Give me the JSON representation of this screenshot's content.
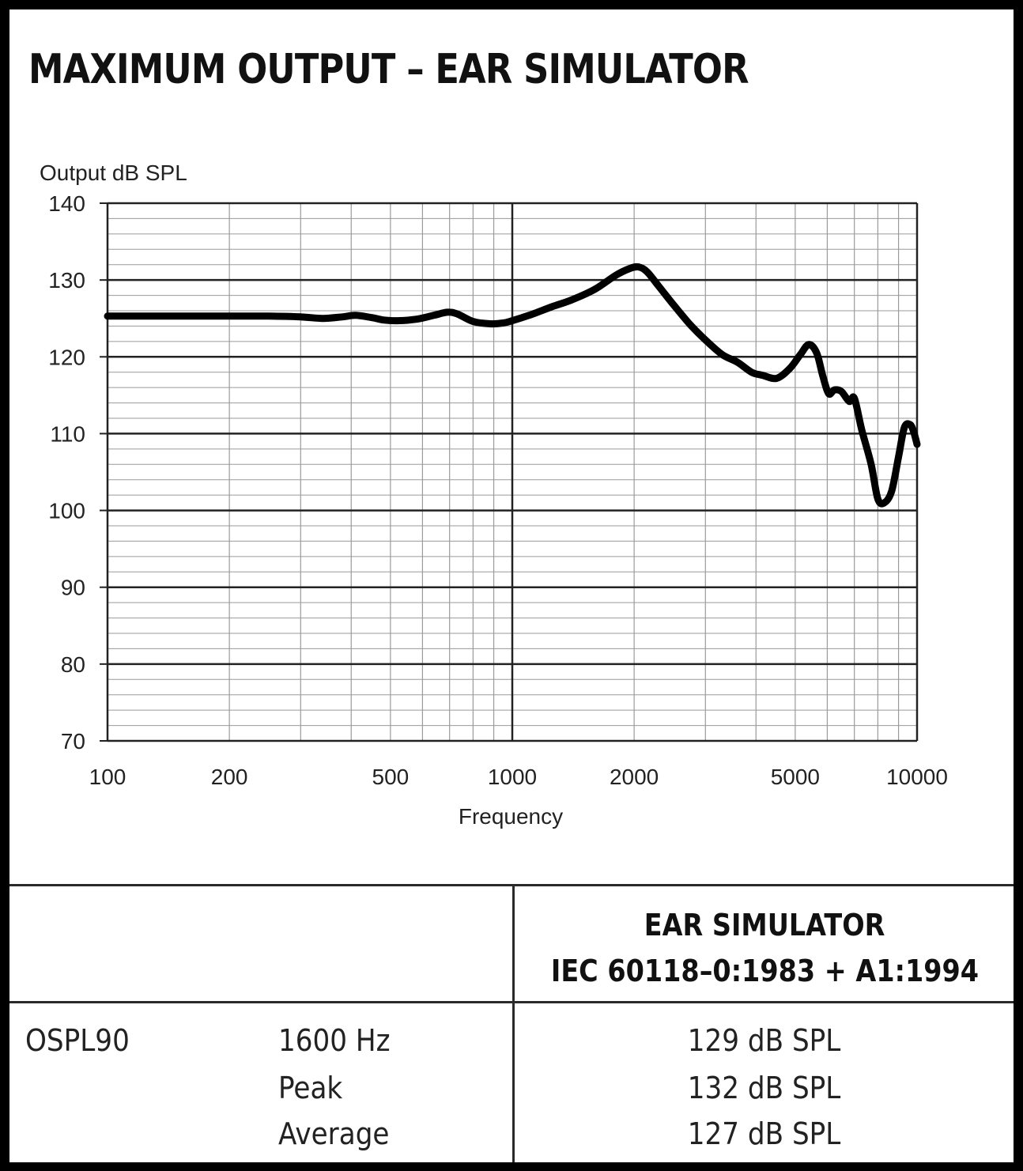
{
  "title": "MAXIMUM OUTPUT – EAR SIMULATOR",
  "chart_data": {
    "type": "line",
    "ylabel": "Output dB SPL",
    "xlabel": "Frequency",
    "x_scale": "log",
    "xlim": [
      100,
      10000
    ],
    "ylim": [
      70,
      140
    ],
    "x_ticks": [
      100,
      200,
      500,
      1000,
      2000,
      5000,
      10000
    ],
    "x_tick_labels": [
      "100",
      "200",
      "500",
      "1000",
      "2000",
      "5000",
      "10000"
    ],
    "y_ticks": [
      70,
      80,
      90,
      100,
      110,
      120,
      130,
      140
    ],
    "y_tick_labels": [
      "70",
      "80",
      "90",
      "100",
      "110",
      "120",
      "130",
      "140"
    ],
    "grid": "on",
    "series": [
      {
        "x": [
          100,
          150,
          200,
          250,
          300,
          340,
          380,
          410,
          450,
          480,
          520,
          580,
          640,
          690,
          730,
          800,
          880,
          950,
          1000,
          1100,
          1250,
          1400,
          1600,
          1800,
          1950,
          2050,
          2150,
          2300,
          2500,
          2750,
          3000,
          3300,
          3600,
          3900,
          4150,
          4500,
          4850,
          5150,
          5400,
          5650,
          5850,
          6050,
          6250,
          6500,
          6800,
          7000,
          7300,
          7700,
          8000,
          8300,
          8650,
          9000,
          9300,
          9600,
          9800,
          10000
        ],
        "y": [
          125.3,
          125.3,
          125.3,
          125.3,
          125.2,
          125.0,
          125.2,
          125.4,
          125.1,
          124.8,
          124.7,
          124.9,
          125.4,
          125.8,
          125.6,
          124.6,
          124.3,
          124.4,
          124.7,
          125.4,
          126.5,
          127.4,
          128.8,
          130.6,
          131.5,
          131.7,
          131.1,
          129.2,
          126.8,
          124.2,
          122.2,
          120.3,
          119.3,
          118.0,
          117.6,
          117.2,
          118.5,
          120.3,
          121.6,
          120.5,
          117.5,
          115.2,
          115.7,
          115.5,
          114.2,
          114.6,
          110.5,
          106.0,
          101.5,
          101.0,
          102.5,
          107.0,
          110.8,
          111.2,
          110.3,
          108.6
        ]
      }
    ]
  },
  "table": {
    "header": [
      "EAR SIMULATOR",
      "IEC 60118–0:1983 + A1:1994"
    ],
    "row_label": "OSPL90",
    "conditions": [
      "1600 Hz",
      "Peak",
      "Average"
    ],
    "values": [
      "129 dB SPL",
      "132 dB SPL",
      "127 dB SPL"
    ]
  }
}
